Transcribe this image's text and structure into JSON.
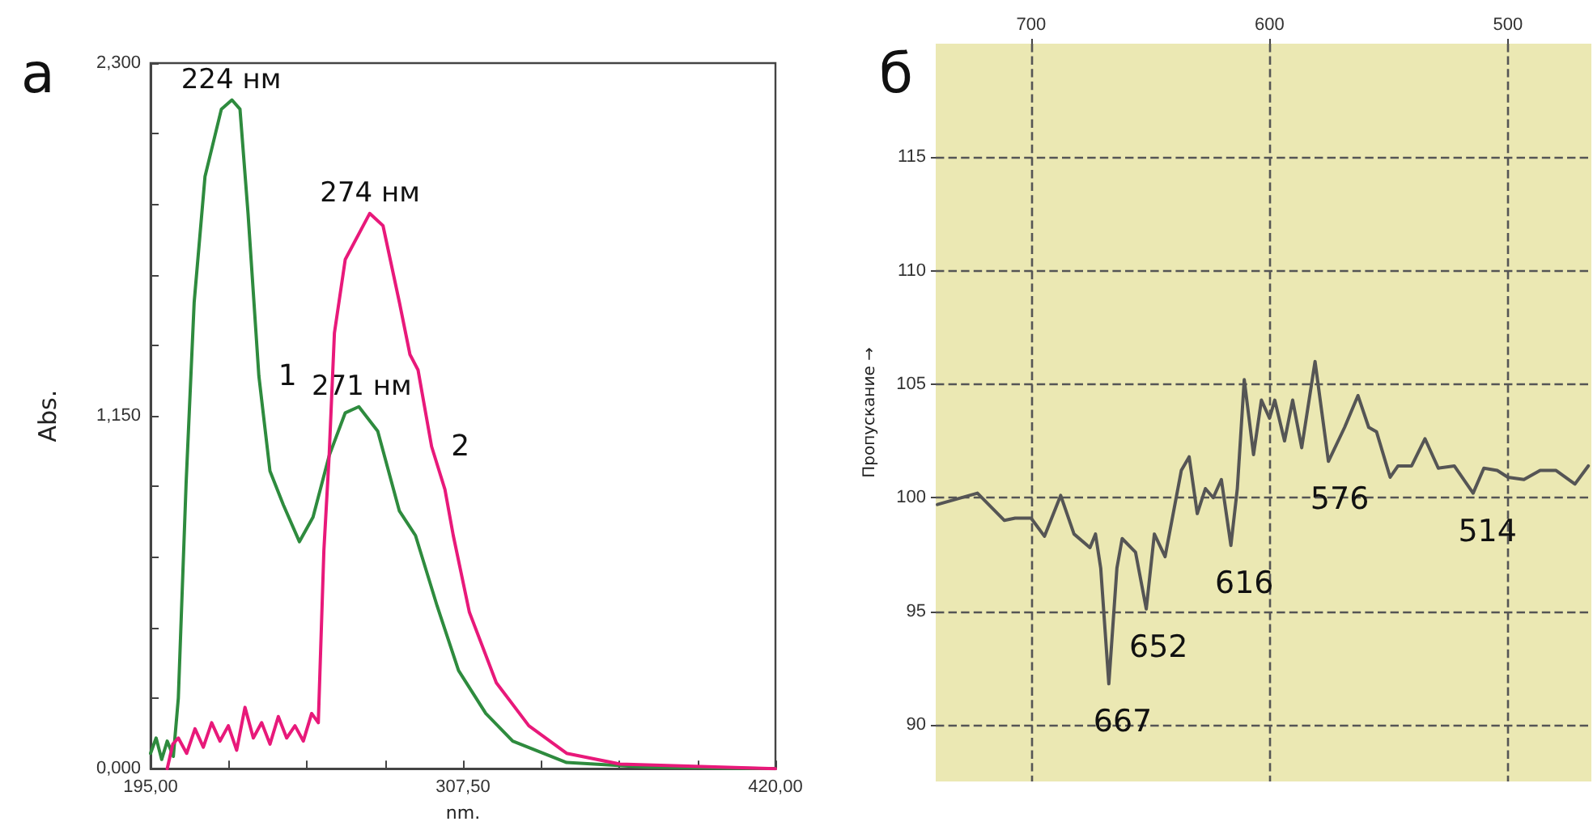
{
  "chart_data": [
    {
      "type": "line",
      "title": "а",
      "xlabel": "nm.",
      "ylabel": "Abs.",
      "xlim": [
        195,
        420
      ],
      "xticks": [
        {
          "value": 195,
          "label": "195,00"
        },
        {
          "value": 223.125,
          "label": null
        },
        {
          "value": 251.25,
          "label": null
        },
        {
          "value": 279.375,
          "label": null
        },
        {
          "value": 307.5,
          "label": "307,50"
        },
        {
          "value": 335.625,
          "label": null
        },
        {
          "value": 363.75,
          "label": null
        },
        {
          "value": 391.875,
          "label": null
        },
        {
          "value": 420,
          "label": "420,00"
        }
      ],
      "ylim": [
        0,
        2.3
      ],
      "yticks": [
        {
          "value": 0,
          "label": "0,000"
        },
        {
          "value": 0.23,
          "label": null
        },
        {
          "value": 0.46,
          "label": null
        },
        {
          "value": 0.69,
          "label": null
        },
        {
          "value": 0.92,
          "label": null
        },
        {
          "value": 1.15,
          "label": "1,150"
        },
        {
          "value": 1.38,
          "label": null
        },
        {
          "value": 1.61,
          "label": null
        },
        {
          "value": 1.84,
          "label": null
        },
        {
          "value": 2.07,
          "label": null
        },
        {
          "value": 2.3,
          "label": "2,300"
        }
      ],
      "grid": false,
      "legend": false,
      "marker": "none",
      "line_style": "solid",
      "series": [
        {
          "name": "1",
          "color": "#2e8b3e",
          "x": [
            195,
            197,
            199,
            201,
            203.2,
            205,
            207.8,
            210.7,
            214.6,
            220.5,
            224.3,
            227.2,
            230.1,
            234,
            238,
            242.8,
            248.6,
            253.5,
            259.3,
            265.1,
            270,
            276.8,
            284.6,
            290.4,
            298.2,
            305.9,
            315.7,
            325.4,
            344.8,
            374,
            420
          ],
          "values": [
            0.05,
            0.1,
            0.03,
            0.09,
            0.04,
            0.23,
            0.93,
            1.52,
            1.93,
            2.15,
            2.18,
            2.15,
            1.81,
            1.28,
            0.97,
            0.86,
            0.74,
            0.82,
            1.02,
            1.16,
            1.18,
            1.1,
            0.84,
            0.76,
            0.53,
            0.32,
            0.18,
            0.09,
            0.02,
            0.005,
            0
          ]
        },
        {
          "name": "2",
          "color": "#e8197a",
          "x": [
            201,
            203,
            205,
            208,
            211,
            214,
            217,
            220,
            223,
            226,
            229,
            232,
            235,
            238,
            241,
            244,
            247,
            250,
            253,
            255.4,
            257.4,
            259.3,
            261.2,
            265.1,
            273.9,
            278.7,
            284.6,
            288.4,
            291.3,
            296.2,
            301,
            304,
            309.8,
            319.5,
            331.2,
            344.8,
            364,
            420
          ],
          "values": [
            0,
            0.08,
            0.1,
            0.05,
            0.13,
            0.07,
            0.15,
            0.09,
            0.14,
            0.06,
            0.2,
            0.1,
            0.15,
            0.08,
            0.17,
            0.1,
            0.14,
            0.09,
            0.18,
            0.15,
            0.71,
            1.02,
            1.42,
            1.66,
            1.81,
            1.77,
            1.52,
            1.35,
            1.3,
            1.05,
            0.91,
            0.76,
            0.51,
            0.28,
            0.14,
            0.05,
            0.015,
            0
          ]
        }
      ],
      "annotations": [
        {
          "text": "224 нм",
          "x": 224,
          "y": 2.18
        },
        {
          "text": "274 нм",
          "x": 274,
          "y": 1.81
        },
        {
          "text": "271 нм",
          "x": 271,
          "y": 1.18
        }
      ]
    },
    {
      "type": "line",
      "title": "б",
      "ylabel": "Пропускание →",
      "xlim": [
        740,
        465
      ],
      "xticks": [
        700,
        600,
        500
      ],
      "ylim": [
        87.5,
        120
      ],
      "yticks": [
        90,
        95,
        100,
        105,
        110,
        115
      ],
      "grid": true,
      "legend": false,
      "marker": "none",
      "line_style": "solid",
      "series": [
        {
          "color": "#555555",
          "x": [
            739.3,
            722.5,
            711.2,
            706.7,
            700,
            694.4,
            687.6,
            682,
            675.3,
            673,
            670.8,
            667.4,
            664,
            661.8,
            656.2,
            651.7,
            648.3,
            643.8,
            637,
            633.7,
            630.3,
            626.9,
            623.6,
            620.2,
            616.2,
            613.5,
            610.6,
            606.7,
            603.4,
            600,
            597.8,
            593.7,
            590.3,
            586.5,
            580.9,
            575.3,
            568.5,
            562.9,
            558.4,
            555.1,
            549.4,
            546.1,
            540.4,
            534.8,
            529.2,
            522.5,
            514.6,
            510.1,
            504.5,
            500,
            493.3,
            486.5,
            479.8,
            471.9,
            466.3
          ],
          "values": [
            99.7,
            100.2,
            99,
            99.1,
            99.1,
            98.3,
            100.1,
            98.4,
            97.8,
            98.4,
            96.9,
            91.8,
            96.9,
            98.2,
            97.6,
            95.1,
            98.4,
            97.4,
            101.2,
            101.8,
            99.3,
            100.4,
            100,
            100.8,
            97.9,
            100.4,
            105.2,
            101.9,
            104.3,
            103.5,
            104.3,
            102.5,
            104.3,
            102.2,
            106,
            101.6,
            103.1,
            104.5,
            103.1,
            102.9,
            100.9,
            101.4,
            101.4,
            102.6,
            101.3,
            101.4,
            100.2,
            101.3,
            101.2,
            100.9,
            100.8,
            101.2,
            101.2,
            100.6,
            101.4
          ]
        }
      ],
      "annotations": [
        {
          "text": "667",
          "x": 667,
          "y": 91.8
        },
        {
          "text": "652",
          "x": 652,
          "y": 95.1
        },
        {
          "text": "616",
          "x": 616,
          "y": 97.9
        },
        {
          "text": "576",
          "x": 576,
          "y": 101.6
        },
        {
          "text": "514",
          "x": 514,
          "y": 100.2
        }
      ]
    }
  ]
}
